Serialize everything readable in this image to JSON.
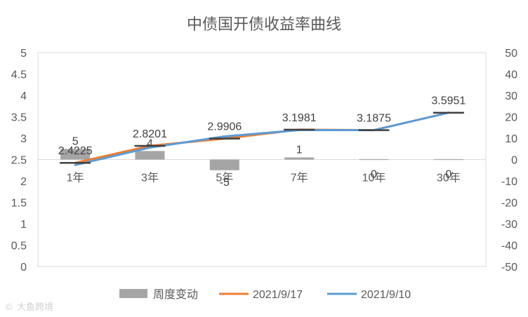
{
  "chart_data": {
    "type": "bar+line",
    "title": "中债国开债收益率曲线",
    "categories": [
      "1年",
      "3年",
      "5年",
      "7年",
      "10年",
      "30年"
    ],
    "y_left": {
      "min": 0,
      "max": 5,
      "step": 0.5,
      "tick_labels": [
        "0",
        "0.5",
        "1",
        "1.5",
        "2",
        "2.5",
        "3",
        "3.5",
        "4",
        "4.5",
        "5"
      ]
    },
    "y_right": {
      "min": -50,
      "max": 50,
      "step": 10,
      "tick_labels": [
        "-50",
        "-40",
        "-30",
        "-20",
        "-10",
        "0",
        "10",
        "20",
        "30",
        "40",
        "50"
      ]
    },
    "series": [
      {
        "name": "周度变动",
        "kind": "bar",
        "axis": "right",
        "color": "#a5a5a5",
        "values": [
          5,
          4,
          -5,
          1,
          0,
          0
        ],
        "labels": [
          "5",
          "4",
          "-5",
          "1",
          "0",
          "0"
        ]
      },
      {
        "name": "2021/9/17",
        "kind": "line",
        "axis": "left",
        "color": "#ed7d31",
        "values": [
          2.4225,
          2.8201,
          2.9906,
          3.1981,
          3.1875,
          3.5951
        ],
        "labels": [
          "2.4225",
          "2.8201",
          "2.9906",
          "3.1981",
          "3.1875",
          "3.5951"
        ]
      },
      {
        "name": "2021/9/10",
        "kind": "line",
        "axis": "left",
        "color": "#5b9bd5",
        "values": [
          2.3725,
          2.7801,
          3.0406,
          3.1881,
          3.1875,
          3.5951
        ]
      }
    ],
    "legend": {
      "placement": "bottom",
      "items": [
        "周度变动",
        "2021/9/17",
        "2021/9/10"
      ]
    },
    "grid": false
  },
  "watermark": "大鱼跨境",
  "colors": {
    "marker": "#404040",
    "axis": "#d9d9d9"
  }
}
